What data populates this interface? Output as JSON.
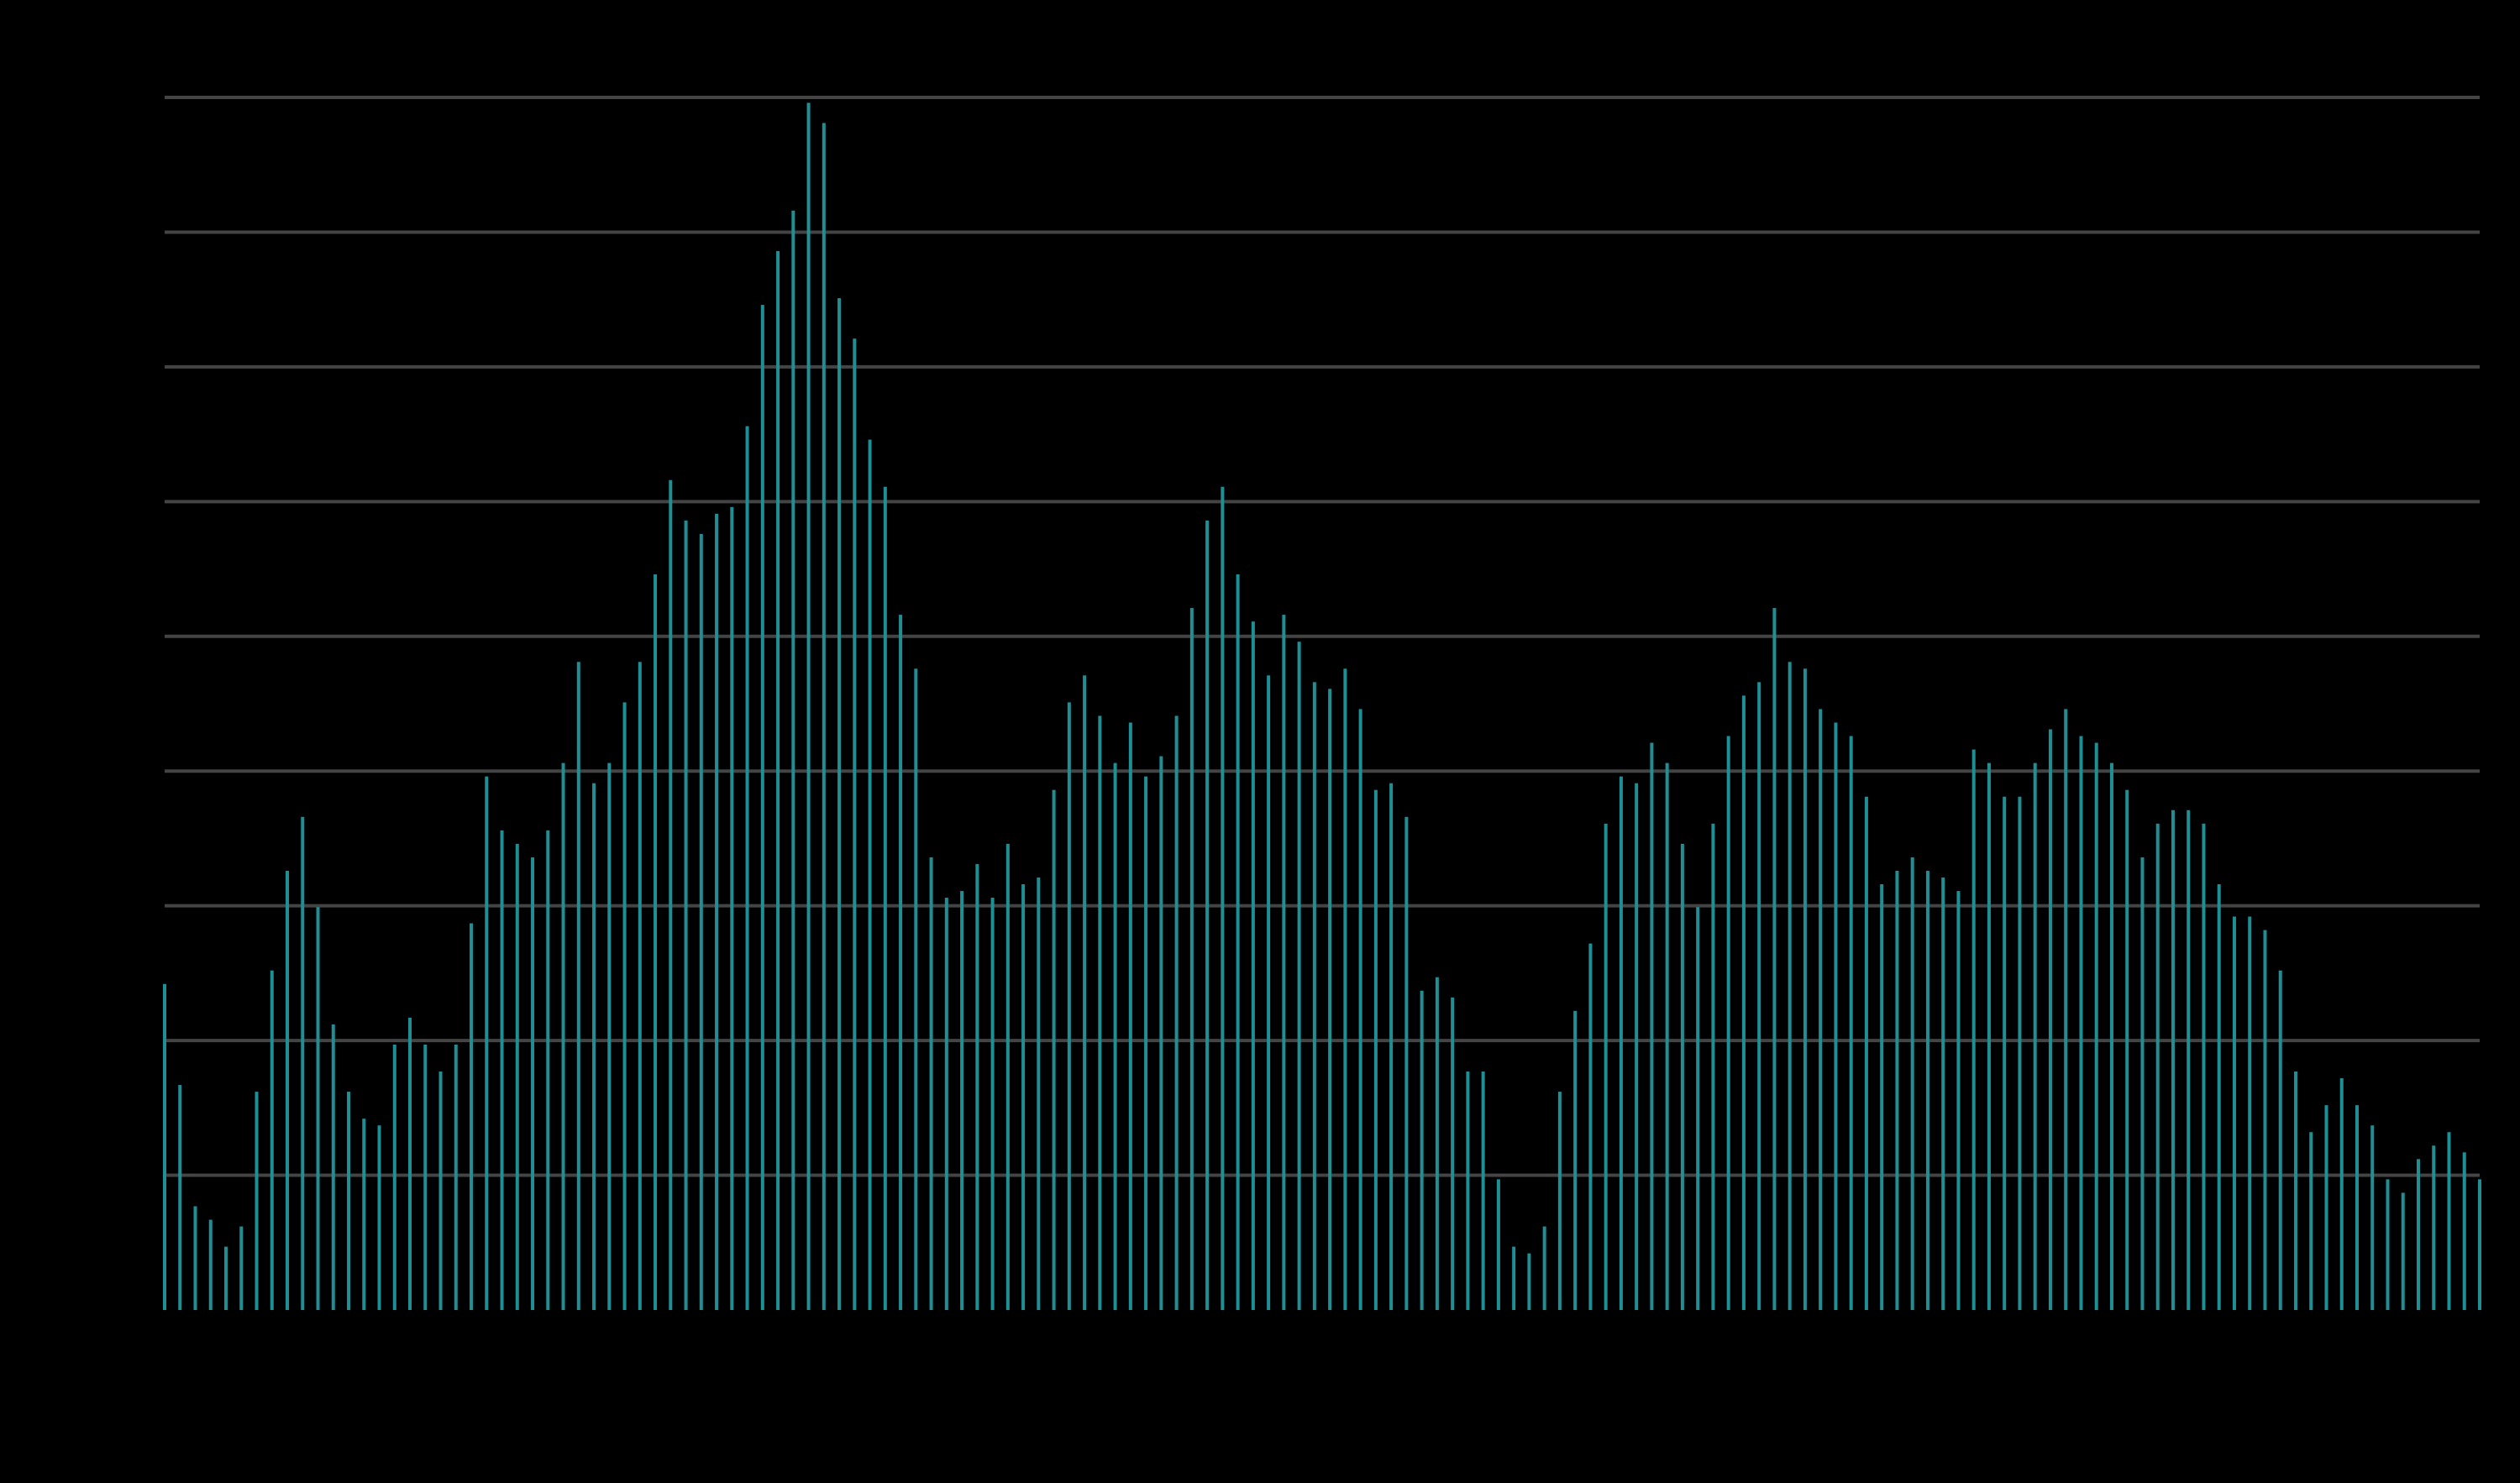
{
  "colors": {
    "background": "#000000",
    "bar": "#1f8f96",
    "grid": "#444444"
  },
  "chart_data": {
    "type": "bar",
    "title": "",
    "xlabel": "",
    "ylabel": "",
    "grid": "horizontal",
    "legend": "none",
    "ylim": [
      0,
      9
    ],
    "y_gridlines": [
      1,
      2,
      3,
      4,
      5,
      6,
      7,
      8,
      9
    ],
    "values": [
      2.42,
      1.67,
      0.77,
      0.67,
      0.47,
      0.62,
      1.62,
      2.52,
      3.26,
      3.66,
      2.99,
      2.12,
      1.62,
      1.42,
      1.37,
      1.97,
      2.17,
      1.97,
      1.77,
      1.97,
      2.87,
      3.96,
      3.56,
      3.46,
      3.36,
      3.56,
      4.06,
      4.81,
      3.91,
      4.06,
      4.51,
      4.81,
      5.46,
      6.16,
      5.86,
      5.76,
      5.91,
      5.96,
      6.56,
      7.46,
      7.86,
      8.16,
      8.96,
      8.81,
      7.51,
      7.21,
      6.46,
      6.11,
      5.16,
      4.76,
      3.36,
      3.06,
      3.11,
      3.31,
      3.06,
      3.46,
      3.16,
      3.21,
      3.86,
      4.51,
      4.71,
      4.41,
      4.06,
      4.36,
      3.96,
      4.11,
      4.41,
      5.21,
      5.86,
      6.11,
      5.46,
      5.11,
      4.71,
      5.16,
      4.96,
      4.66,
      4.61,
      4.76,
      4.46,
      3.86,
      3.91,
      3.66,
      2.37,
      2.47,
      2.32,
      1.77,
      1.77,
      0.97,
      0.47,
      0.42,
      0.62,
      1.62,
      2.22,
      2.72,
      3.61,
      3.96,
      3.91,
      4.21,
      4.06,
      3.46,
      2.99,
      3.61,
      4.26,
      4.56,
      4.66,
      5.21,
      4.81,
      4.76,
      4.46,
      4.36,
      4.26,
      3.81,
      3.16,
      3.26,
      3.36,
      3.26,
      3.21,
      3.11,
      4.16,
      4.06,
      3.81,
      3.81,
      4.06,
      4.31,
      4.46,
      4.26,
      4.21,
      4.06,
      3.86,
      3.36,
      3.61,
      3.71,
      3.71,
      3.61,
      3.16,
      2.92,
      2.92,
      2.82,
      2.52,
      1.77,
      1.32,
      1.52,
      1.72,
      1.52,
      1.37,
      0.97,
      0.87,
      1.12,
      1.22,
      1.32,
      1.17,
      0.97
    ]
  }
}
